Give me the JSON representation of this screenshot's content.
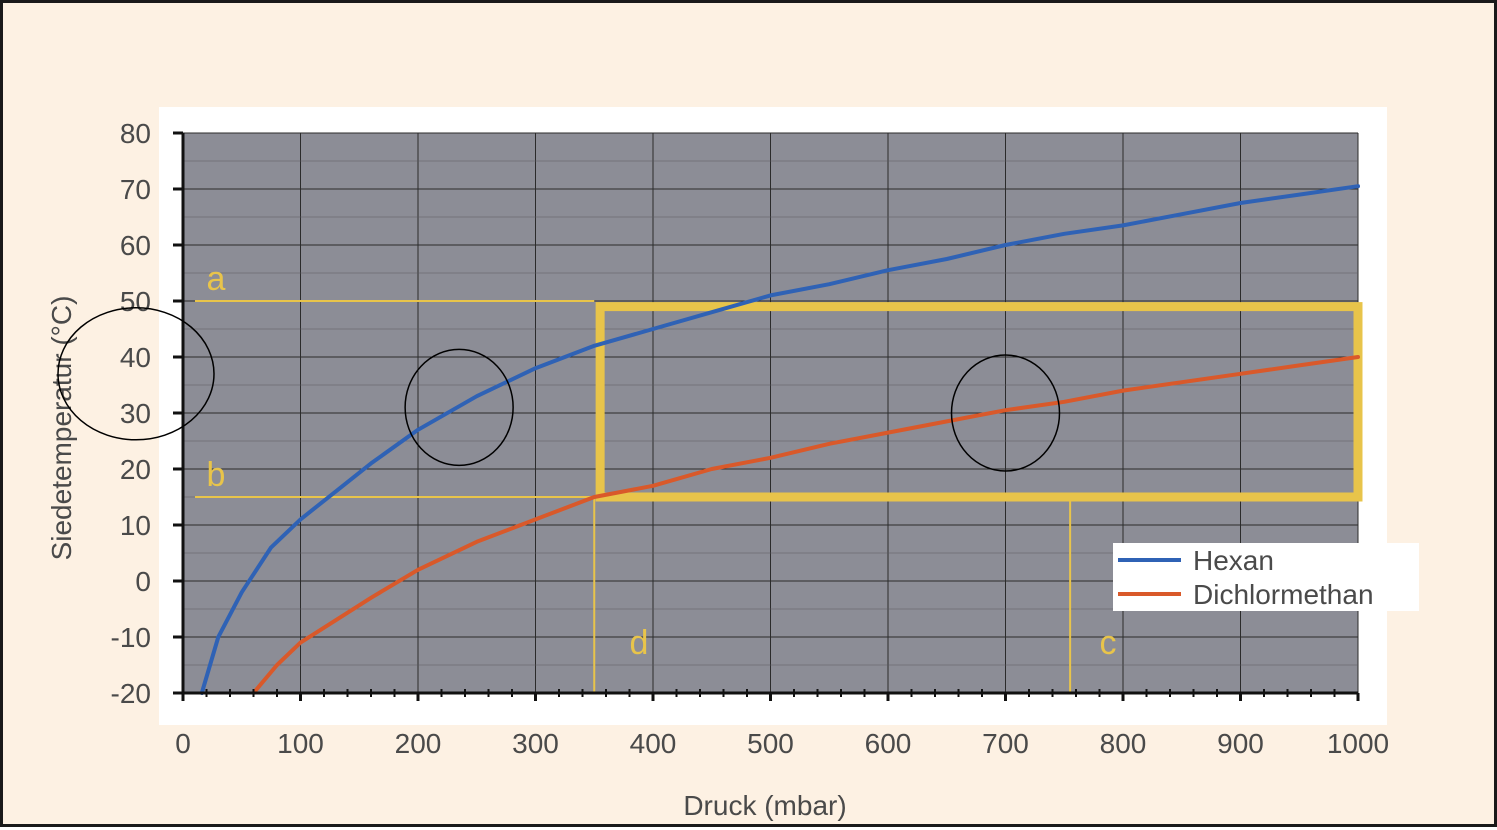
{
  "chart_data": {
    "type": "line",
    "title": "",
    "xlabel": "Druck (mbar)",
    "ylabel": "Siedetemperatur (°C)",
    "xlim": [
      0,
      1000
    ],
    "ylim": [
      -20,
      80
    ],
    "xticks": [
      0,
      100,
      200,
      300,
      400,
      500,
      600,
      700,
      800,
      900,
      1000
    ],
    "yticks": [
      -20,
      -10,
      0,
      10,
      20,
      30,
      40,
      50,
      60,
      70,
      80
    ],
    "xtick_labels": [
      "0",
      "100",
      "200",
      "300",
      "400",
      "500",
      "600",
      "700",
      "800",
      "900",
      "1000"
    ],
    "ytick_labels": [
      "-20",
      "-10",
      "0",
      "10",
      "20",
      "30",
      "40",
      "50",
      "60",
      "70",
      "80"
    ],
    "grid": true,
    "legend_position": "bottom-right",
    "series": [
      {
        "name": "Hexan",
        "color": "#2f62b5",
        "x": [
          16,
          30,
          50,
          75,
          100,
          130,
          160,
          200,
          250,
          300,
          350,
          400,
          450,
          500,
          550,
          600,
          650,
          700,
          750,
          800,
          850,
          900,
          950,
          1000
        ],
        "y": [
          -20,
          -10,
          -2,
          6,
          11,
          16,
          21,
          27,
          33,
          38,
          42,
          45,
          48,
          51,
          53,
          55.5,
          57.5,
          60,
          62,
          63.5,
          65.5,
          67.5,
          69,
          70.5
        ]
      },
      {
        "name": "Dichlormethan",
        "color": "#d9592a",
        "x": [
          60,
          80,
          100,
          130,
          160,
          200,
          250,
          300,
          350,
          400,
          450,
          500,
          550,
          600,
          650,
          700,
          750,
          800,
          850,
          900,
          950,
          1000
        ],
        "y": [
          -20,
          -15,
          -11,
          -7,
          -3,
          2,
          7,
          11,
          15,
          17,
          20,
          22,
          24.5,
          26.5,
          28.5,
          30.5,
          32,
          34,
          35.5,
          37,
          38.5,
          40
        ]
      }
    ],
    "annotations": {
      "labels": [
        {
          "text": "a",
          "x": 20,
          "y": 52
        },
        {
          "text": "b",
          "x": 20,
          "y": 17
        },
        {
          "text": "d",
          "x": 380,
          "y": -13
        },
        {
          "text": "c",
          "x": 780,
          "y": -13
        }
      ],
      "h_lines": [
        {
          "y": 50,
          "x_from": 0,
          "x_to": 350
        },
        {
          "y": 15,
          "x_from": 0,
          "x_to": 350
        }
      ],
      "v_lines": [
        {
          "x": 350,
          "y_from": -20,
          "y_to": 15
        },
        {
          "x": 755,
          "y_from": -20,
          "y_to": 15
        }
      ],
      "box": {
        "x_from": 355,
        "x_to": 1000,
        "y_from": 15,
        "y_to": 49
      },
      "color": "#e8c44a",
      "circles": [
        {
          "x": 235,
          "y": 31
        },
        {
          "x": 700,
          "y": 30
        },
        {
          "x": -40,
          "y": 37
        }
      ]
    }
  }
}
